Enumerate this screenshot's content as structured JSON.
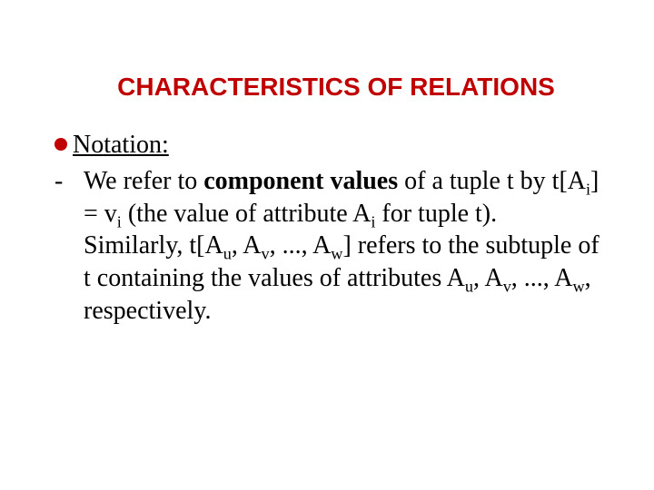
{
  "title": {
    "text": "CHARACTERISTICS OF RELATIONS",
    "color": "#c00000"
  },
  "bullet": {
    "label": "Notation:",
    "color": "#c00000"
  },
  "p1": {
    "dash": "-",
    "t1": "We refer to ",
    "bold": "component values",
    "t2": " of a tuple t by t[A",
    "sub1": "i",
    "t3": "] = v",
    "sub2": "i",
    "t4": " (the value of attribute A",
    "sub3": "i",
    "t5": " for tuple t)."
  },
  "p2": {
    "t1": "Similarly, t[A",
    "sub1": "u",
    "t2": ", A",
    "sub2": "v",
    "t3": ", ..., A",
    "sub3": "w",
    "t4": "] refers to the subtuple of t containing the values of attributes A",
    "sub4": "u",
    "t5": ", A",
    "sub5": "v",
    "t6": ", ..., A",
    "sub6": "w",
    "t7": ", respectively."
  }
}
